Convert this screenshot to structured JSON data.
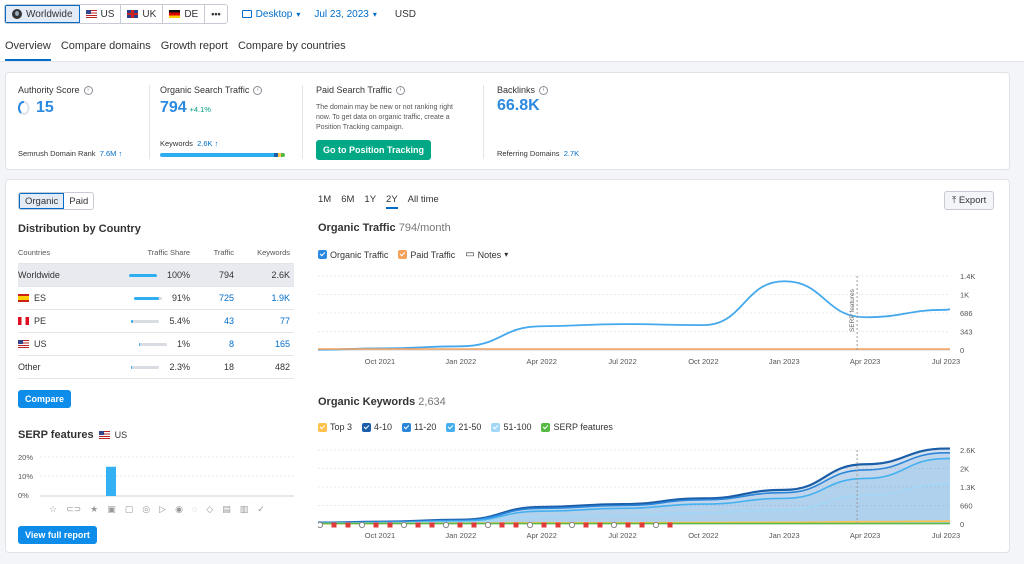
{
  "topbar": {
    "databases": [
      {
        "label": "Worldwide",
        "icon": "globe-icon",
        "active": true
      },
      {
        "label": "US",
        "icon": "flag-us-icon"
      },
      {
        "label": "UK",
        "icon": "flag-uk-icon"
      },
      {
        "label": "DE",
        "icon": "flag-de-icon"
      }
    ],
    "more": "•••",
    "device": "Desktop",
    "date": "Jul 23, 2023",
    "currency": "USD"
  },
  "tabs": [
    "Overview",
    "Compare domains",
    "Growth report",
    "Compare by countries"
  ],
  "metrics": {
    "authority": {
      "label": "Authority Score",
      "value": "15",
      "rank_label": "Semrush Domain Rank",
      "rank_value": "7.6M ↑"
    },
    "organic": {
      "label": "Organic Search Traffic",
      "value": "794",
      "change": "+4.1%",
      "keywords_label": "Keywords",
      "keywords_value": "2.6K ↑"
    },
    "paid": {
      "label": "Paid Search Traffic",
      "note": "The domain may be new or not ranking right now. To get data on organic traffic, create a Position Tracking campaign.",
      "button": "Go to Position Tracking"
    },
    "backlinks": {
      "label": "Backlinks",
      "value": "66.8K",
      "ref_label": "Referring Domains",
      "ref_value": "2.7K"
    }
  },
  "left": {
    "toggle": [
      "Organic",
      "Paid"
    ],
    "dist_title": "Distribution by Country",
    "columns": [
      "Countries",
      "Traffic Share",
      "Traffic",
      "Keywords"
    ],
    "rows": [
      {
        "country": "Worldwide",
        "flag": "",
        "share": "100%",
        "share_value": 100,
        "traffic": "794",
        "keywords": "2.6K",
        "highlight": true,
        "link": false
      },
      {
        "country": "ES",
        "flag": "es",
        "share": "91%",
        "share_value": 91,
        "traffic": "725",
        "keywords": "1.9K",
        "link": true
      },
      {
        "country": "PE",
        "flag": "pe",
        "share": "5.4%",
        "share_value": 5.4,
        "traffic": "43",
        "keywords": "77",
        "link": true
      },
      {
        "country": "US",
        "flag": "us",
        "share": "1%",
        "share_value": 1,
        "traffic": "8",
        "keywords": "165",
        "link": true
      },
      {
        "country": "Other",
        "flag": "",
        "share": "2.3%",
        "share_value": 2.3,
        "traffic": "18",
        "keywords": "482",
        "link": false
      }
    ],
    "compare_button": "Compare",
    "serp_title": "SERP features",
    "serp_db": "US",
    "serp_ticks": [
      "20%",
      "10%",
      "0%"
    ],
    "serp_bar_value": 15,
    "view_full_button": "View full report"
  },
  "right": {
    "periods": [
      "1M",
      "6M",
      "1Y",
      "2Y",
      "All time"
    ],
    "active_period": "2Y",
    "export": "Export",
    "traffic_title": "Organic Traffic",
    "traffic_sub": "794/month",
    "traffic_legend": [
      "Organic Traffic",
      "Paid Traffic",
      "Notes"
    ],
    "serp_marker": "SERP features",
    "keywords_title": "Organic Keywords",
    "keywords_sub": "2,634",
    "keywords_legend": [
      "Top 3",
      "4-10",
      "11-20",
      "21-50",
      "51-100",
      "SERP features"
    ],
    "colors": {
      "organic": "#44a8ec",
      "paid": "#f5a25d",
      "top3": "#ffc24d",
      "k410": "#1a5ea8",
      "k1120": "#2b86d9",
      "k2150": "#45b0f0",
      "k51100": "#a3d7f8",
      "serp": "#55b944"
    }
  },
  "chart_data": [
    {
      "type": "line",
      "title": "Organic Traffic",
      "x": [
        "Oct 2021",
        "Jan 2022",
        "Apr 2022",
        "Jul 2022",
        "Oct 2022",
        "Jan 2023",
        "Apr 2023",
        "Jul 2023"
      ],
      "yticks": [
        "1.4K",
        "1K",
        "686",
        "343",
        "0"
      ],
      "ylim": [
        0,
        1400
      ],
      "series": [
        {
          "name": "Organic Traffic",
          "values": [
            30,
            70,
            450,
            490,
            470,
            1300,
            620,
            760
          ]
        },
        {
          "name": "Paid Traffic",
          "values": [
            0,
            0,
            0,
            0,
            0,
            0,
            0,
            0
          ]
        }
      ]
    },
    {
      "type": "area",
      "title": "Organic Keywords",
      "x": [
        "Oct 2021",
        "Jan 2022",
        "Apr 2022",
        "Jul 2022",
        "Oct 2022",
        "Jan 2023",
        "Apr 2023",
        "Jul 2023"
      ],
      "yticks": [
        "2.6K",
        "2K",
        "1.3K",
        "660",
        "0"
      ],
      "ylim": [
        0,
        2600
      ],
      "series": [
        {
          "name": "Top 3",
          "values": [
            20,
            30,
            40,
            40,
            50,
            60,
            80,
            100
          ]
        },
        {
          "name": "4-10",
          "values": [
            80,
            150,
            600,
            700,
            900,
            1200,
            2100,
            2650
          ]
        },
        {
          "name": "11-20",
          "values": [
            70,
            130,
            550,
            650,
            850,
            1100,
            1900,
            2500
          ]
        },
        {
          "name": "21-50",
          "values": [
            50,
            100,
            450,
            550,
            700,
            900,
            1600,
            2300
          ]
        },
        {
          "name": "51-100",
          "values": [
            30,
            60,
            250,
            300,
            400,
            500,
            1000,
            1400
          ]
        },
        {
          "name": "SERP features",
          "values": [
            0,
            0,
            0,
            0,
            0,
            0,
            0,
            0
          ]
        }
      ]
    }
  ]
}
